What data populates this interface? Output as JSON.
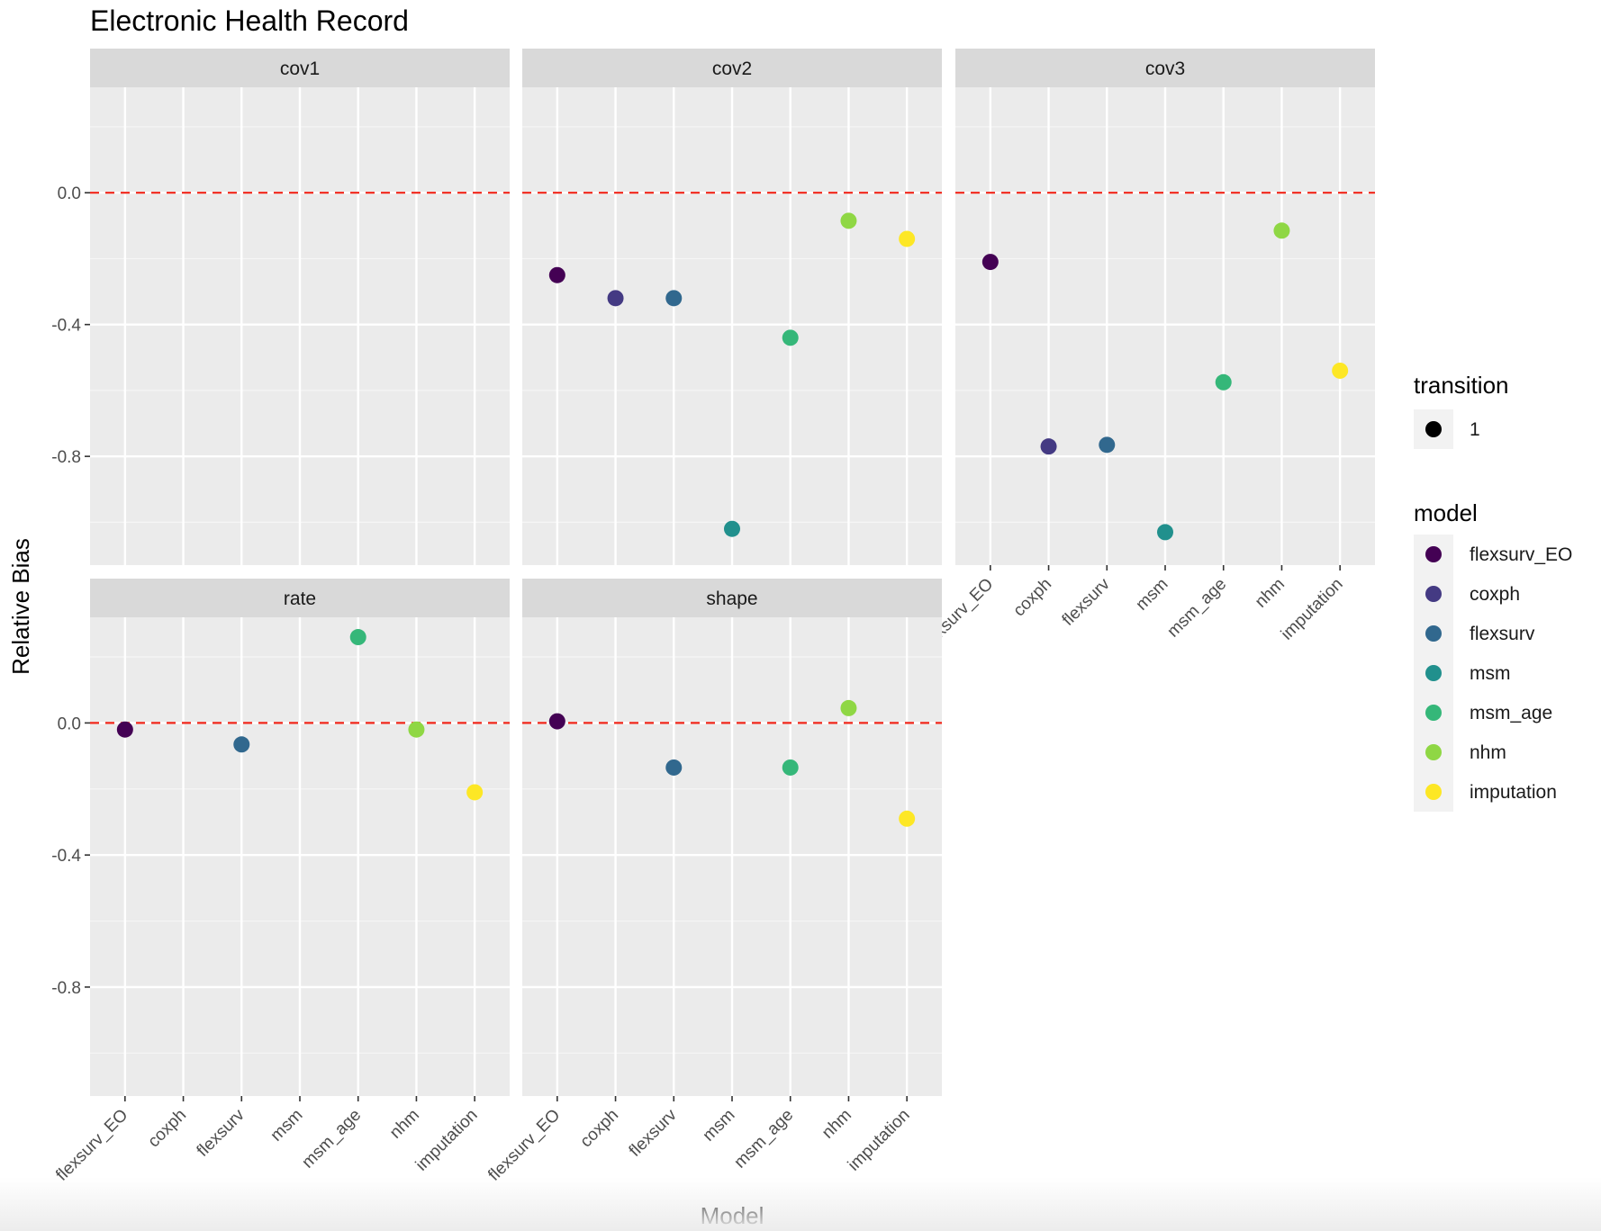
{
  "chart_data": {
    "type": "scatter",
    "title": "Electronic Health Record",
    "xlabel": "Model",
    "ylabel": "Relative Bias",
    "categories": [
      "flexsurv_EO",
      "coxph",
      "flexsurv",
      "msm",
      "msm_age",
      "nhm",
      "imputation"
    ],
    "yticks": [
      0.0,
      -0.4,
      -0.8
    ],
    "ytick_labels": [
      "0.0",
      "-0.4",
      "-0.8"
    ],
    "ylim": [
      -1.13,
      0.32
    ],
    "reference_line": {
      "y": 0,
      "style": "dashed",
      "color": "#f0261a"
    },
    "grid": true,
    "legend_position": "right",
    "legend": {
      "transition": {
        "title": "transition",
        "items": [
          "1"
        ]
      },
      "model": {
        "title": "model",
        "items": [
          "flexsurv_EO",
          "coxph",
          "flexsurv",
          "msm",
          "msm_age",
          "nhm",
          "imputation"
        ]
      }
    },
    "colors": {
      "flexsurv_EO": "#440154",
      "coxph": "#443a83",
      "flexsurv": "#31688e",
      "msm": "#21908d",
      "msm_age": "#35b779",
      "nhm": "#8fd744",
      "imputation": "#fde725"
    },
    "panels": [
      {
        "name": "cov1",
        "points": []
      },
      {
        "name": "cov2",
        "points": [
          {
            "model": "flexsurv_EO",
            "value": -0.25
          },
          {
            "model": "coxph",
            "value": -0.32
          },
          {
            "model": "flexsurv",
            "value": -0.32
          },
          {
            "model": "msm",
            "value": -1.02
          },
          {
            "model": "msm_age",
            "value": -0.44
          },
          {
            "model": "nhm",
            "value": -0.085
          },
          {
            "model": "imputation",
            "value": -0.14
          }
        ]
      },
      {
        "name": "cov3",
        "points": [
          {
            "model": "flexsurv_EO",
            "value": -0.21
          },
          {
            "model": "coxph",
            "value": -0.77
          },
          {
            "model": "flexsurv",
            "value": -0.765
          },
          {
            "model": "msm",
            "value": -1.03
          },
          {
            "model": "msm_age",
            "value": -0.575
          },
          {
            "model": "nhm",
            "value": -0.115
          },
          {
            "model": "imputation",
            "value": -0.54
          }
        ]
      },
      {
        "name": "rate",
        "points": [
          {
            "model": "flexsurv_EO",
            "value": -0.02
          },
          {
            "model": "flexsurv",
            "value": -0.065
          },
          {
            "model": "msm_age",
            "value": 0.26
          },
          {
            "model": "nhm",
            "value": -0.02
          },
          {
            "model": "imputation",
            "value": -0.21
          }
        ]
      },
      {
        "name": "shape",
        "points": [
          {
            "model": "flexsurv_EO",
            "value": 0.005
          },
          {
            "model": "flexsurv",
            "value": -0.135
          },
          {
            "model": "msm_age",
            "value": -0.135
          },
          {
            "model": "nhm",
            "value": 0.045
          },
          {
            "model": "imputation",
            "value": -0.29
          }
        ]
      }
    ]
  }
}
